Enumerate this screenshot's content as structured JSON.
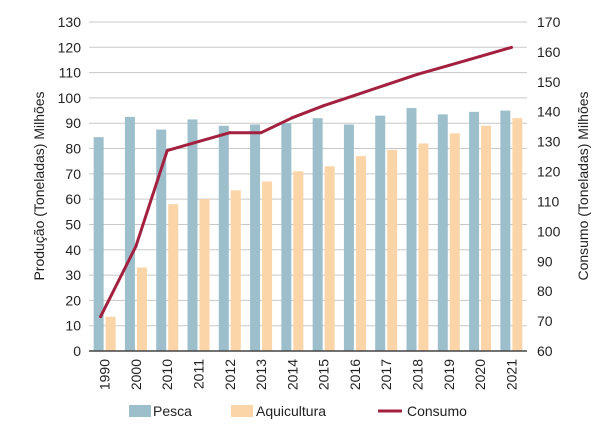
{
  "chart_data": {
    "type": "bar",
    "title": "",
    "categories": [
      "1990",
      "2000",
      "2010",
      "2011",
      "2012",
      "2013",
      "2014",
      "2015",
      "2016",
      "2017",
      "2018",
      "2019",
      "2020",
      "2021"
    ],
    "ylabel": "Produção (Toneladas) Milhões",
    "y2label": "Consumo (Toneladas) Milhões",
    "ylim": [
      0,
      130
    ],
    "y2lim": [
      60,
      170
    ],
    "yticks": [
      0,
      10,
      20,
      30,
      40,
      50,
      60,
      70,
      80,
      90,
      100,
      110,
      120,
      130
    ],
    "y2ticks": [
      60,
      70,
      80,
      90,
      100,
      110,
      120,
      130,
      140,
      150,
      160,
      170
    ],
    "grid": true,
    "legend_position": "bottom",
    "series": [
      {
        "name": "Pesca",
        "type": "bar",
        "axis": "left",
        "color": "#9dbfcc",
        "values": [
          84.5,
          92.5,
          87.5,
          91.5,
          89,
          89.5,
          90,
          92,
          89.5,
          93,
          96,
          93.5,
          94.5,
          95
        ]
      },
      {
        "name": "Aquicultura",
        "type": "bar",
        "axis": "left",
        "color": "#fbd4a8",
        "values": [
          13.5,
          33,
          58,
          60,
          63.5,
          67,
          71,
          73,
          77,
          79.5,
          82,
          86,
          89,
          92
        ]
      },
      {
        "name": "Consumo",
        "type": "line",
        "axis": "right",
        "color": "#a3203f",
        "values": [
          71.5,
          95,
          127,
          130,
          133,
          133,
          138,
          142,
          145.5,
          149,
          152.5,
          155.5,
          158.5,
          161.5
        ]
      }
    ]
  }
}
